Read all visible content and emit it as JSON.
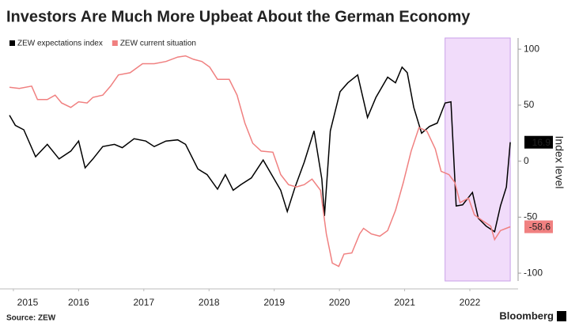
{
  "chart_data": {
    "type": "line",
    "title": "Investors Are Much More Upbeat About the German Economy",
    "y_axis_label": "Index level",
    "source": "Source: ZEW",
    "brand": "Bloomberg",
    "xlim": [
      2015.44,
      2023.24
    ],
    "xticks": [
      {
        "value": 2015.5,
        "label": "2015"
      },
      {
        "value": 2016.5,
        "label": "2016"
      },
      {
        "value": 2017.5,
        "label": "2017"
      },
      {
        "value": 2018.5,
        "label": "2018"
      },
      {
        "value": 2019.5,
        "label": "2019"
      },
      {
        "value": 2020.5,
        "label": "2020"
      },
      {
        "value": 2021.5,
        "label": "2021"
      },
      {
        "value": 2022.5,
        "label": "2022"
      }
    ],
    "ylim": [
      -107,
      110
    ],
    "yticks": [
      100,
      50,
      0,
      -50,
      -100
    ],
    "shaded_range": [
      2022.12,
      2023.12
    ],
    "shade_color": "#f1dcfa",
    "series": [
      {
        "name": "ZEW expectations index",
        "color": "#000000",
        "x": [
          2015.44,
          2015.53,
          2015.66,
          2015.84,
          2016.02,
          2016.2,
          2016.38,
          2016.5,
          2016.6,
          2016.72,
          2016.87,
          2017.05,
          2017.17,
          2017.35,
          2017.53,
          2017.66,
          2017.84,
          2018.02,
          2018.14,
          2018.33,
          2018.47,
          2018.63,
          2018.75,
          2018.87,
          2018.99,
          2019.15,
          2019.33,
          2019.45,
          2019.6,
          2019.7,
          2019.82,
          2019.96,
          2020.11,
          2020.23,
          2020.27,
          2020.36,
          2020.51,
          2020.63,
          2020.78,
          2020.93,
          2021.06,
          2021.24,
          2021.36,
          2021.46,
          2021.54,
          2021.64,
          2021.76,
          2021.88,
          2022.0,
          2022.12,
          2022.21,
          2022.29,
          2022.39,
          2022.54,
          2022.63,
          2022.75,
          2022.88,
          2022.97,
          2023.06,
          2023.12
        ],
        "values": [
          41,
          32,
          28,
          4,
          15,
          2,
          9,
          18,
          -6,
          2,
          13,
          15,
          12,
          20,
          18,
          13,
          18,
          19,
          15,
          -7,
          -12,
          -25,
          -12,
          -26,
          -21,
          -15,
          1,
          -11,
          -26,
          -45,
          -23,
          -1,
          27,
          -16,
          -49,
          27,
          62,
          70,
          77,
          39,
          57,
          75,
          70,
          84,
          79,
          48,
          25,
          31,
          34,
          52,
          53,
          -40,
          -39,
          -28,
          -51,
          -58,
          -63,
          -40,
          -23,
          16.9
        ]
      },
      {
        "name": "ZEW current situation",
        "color": "#f08080",
        "x": [
          2015.44,
          2015.59,
          2015.78,
          2015.87,
          2016.02,
          2016.14,
          2016.24,
          2016.38,
          2016.5,
          2016.63,
          2016.72,
          2016.87,
          2016.99,
          2017.11,
          2017.29,
          2017.48,
          2017.66,
          2017.84,
          2018.02,
          2018.14,
          2018.26,
          2018.39,
          2018.51,
          2018.63,
          2018.81,
          2018.93,
          2019.05,
          2019.17,
          2019.3,
          2019.48,
          2019.6,
          2019.72,
          2019.84,
          2019.96,
          2020.08,
          2020.21,
          2020.3,
          2020.39,
          2020.49,
          2020.57,
          2020.69,
          2020.81,
          2020.87,
          2020.99,
          2021.12,
          2021.24,
          2021.36,
          2021.48,
          2021.6,
          2021.72,
          2021.84,
          2021.97,
          2022.06,
          2022.18,
          2022.27,
          2022.35,
          2022.48,
          2022.57,
          2022.69,
          2022.82,
          2022.88,
          2022.97,
          2023.12
        ],
        "values": [
          66,
          65,
          67,
          55,
          55,
          59,
          52,
          48,
          53,
          52,
          57,
          59,
          67,
          77,
          79,
          87,
          87,
          89,
          93,
          94,
          91,
          89,
          84,
          73,
          73,
          59,
          34,
          16,
          9,
          8,
          -12,
          -21,
          -23,
          -21,
          -16,
          -26,
          -65,
          -91,
          -94,
          -83,
          -82,
          -65,
          -60,
          -65,
          -67,
          -62,
          -44,
          -19,
          9,
          30,
          27,
          11,
          -9,
          -12,
          -19,
          -37,
          -33,
          -48,
          -53,
          -58,
          -70,
          -62,
          -58.6
        ]
      }
    ]
  }
}
